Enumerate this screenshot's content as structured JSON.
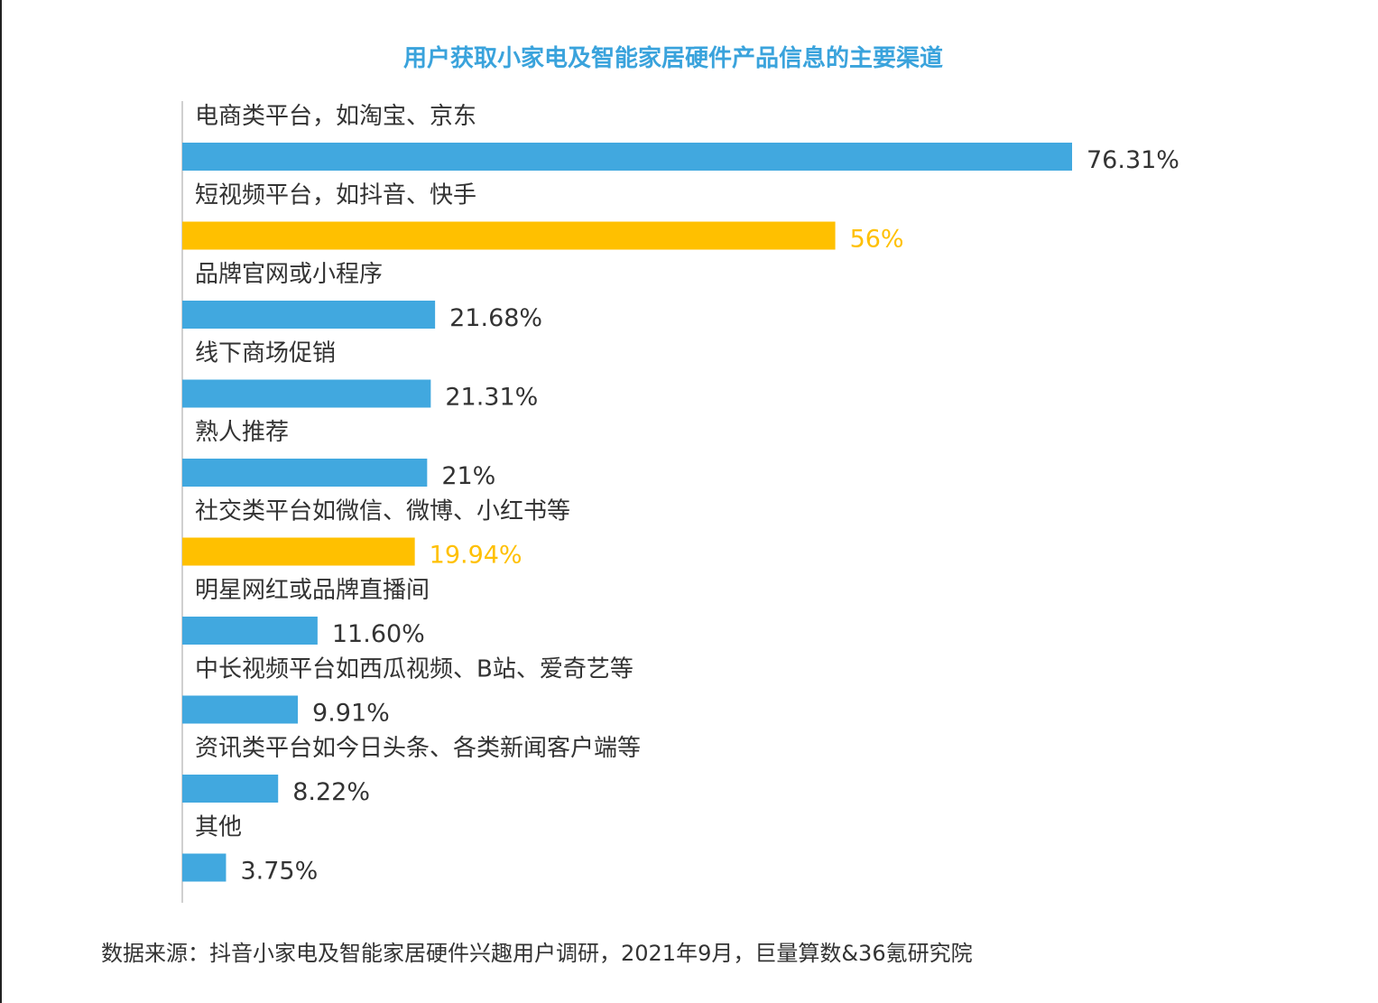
{
  "title": "用户获取小家电及智能家居硬件产品信息的主要渠道",
  "source": "数据来源：抖音小家电及智能家居硬件兴趣用户调研，2021年9月，巨量算数&36氪研究院",
  "colors": {
    "primary": "#41a8df",
    "highlight": "#ffc000",
    "text": "#333333",
    "title": "#3aa3dc"
  },
  "chart_data": {
    "type": "bar",
    "orientation": "horizontal",
    "title": "用户获取小家电及智能家居硬件产品信息的主要渠道",
    "categories": [
      "电商类平台，如淘宝、京东",
      "短视频平台，如抖音、快手",
      "品牌官网或小程序",
      "线下商场促销",
      "熟人推荐",
      "社交类平台如微信、微博、小红书等",
      "明星网红或品牌直播间",
      "中长视频平台如西瓜视频、B站、爱奇艺等",
      "资讯类平台如今日头条、各类新闻客户端等",
      "其他"
    ],
    "values": [
      76.31,
      56,
      21.68,
      21.31,
      21,
      19.94,
      11.6,
      9.91,
      8.22,
      3.75
    ],
    "value_labels": [
      "76.31%",
      "56%",
      "21.68%",
      "21.31%",
      "21%",
      "19.94%",
      "11.60%",
      "9.91%",
      "8.22%",
      "3.75%"
    ],
    "highlighted": [
      false,
      true,
      false,
      false,
      false,
      true,
      false,
      false,
      false,
      false
    ],
    "unit": "%",
    "xlim": [
      0,
      76.31
    ],
    "grid": false,
    "legend": "none"
  }
}
